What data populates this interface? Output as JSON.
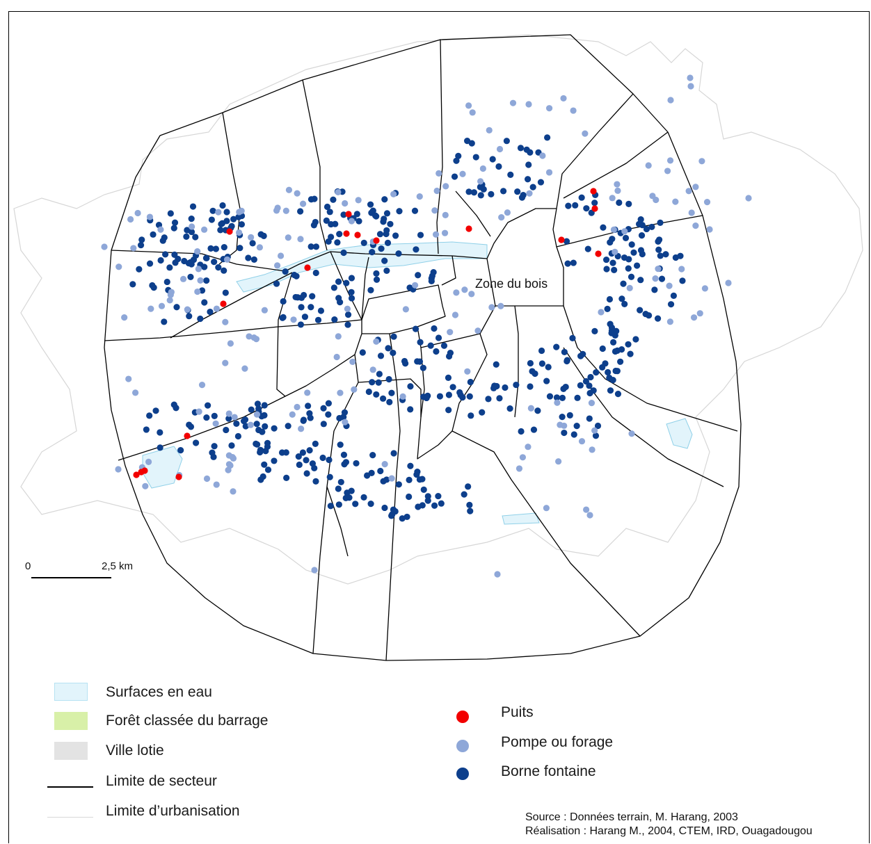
{
  "map": {
    "zone_label": "Zone du bois",
    "scale": {
      "start": "0",
      "end": "2,5 km"
    },
    "colors": {
      "puits": "#f20000",
      "pompe": "#8ea7d8",
      "borne": "#0d3f8c",
      "water": "#e2f4fb",
      "lotie": "#e3e3e3",
      "forest": "#d8f0a8"
    }
  },
  "legend": {
    "areas": [
      {
        "label": "Surfaces en eau",
        "icon": "water-swatch"
      },
      {
        "label": "Forêt classée du barrage",
        "icon": "forest-swatch"
      },
      {
        "label": "Ville lotie",
        "icon": "lotie-swatch"
      },
      {
        "label": "Limite de secteur",
        "icon": "sector-line"
      },
      {
        "label": "Limite d’urbanisation",
        "icon": "urban-line"
      }
    ],
    "points": [
      {
        "label": "Puits",
        "icon": "red-dot"
      },
      {
        "label": "Pompe ou forage",
        "icon": "light-blue-dot"
      },
      {
        "label": "Borne fontaine",
        "icon": "dark-blue-dot"
      }
    ]
  },
  "source": {
    "line1": "Source : Données terrain, M. Harang, 2003",
    "line2": "Réalisation : Harang M., 2004, CTEM, IRD, Ouagadougou"
  }
}
